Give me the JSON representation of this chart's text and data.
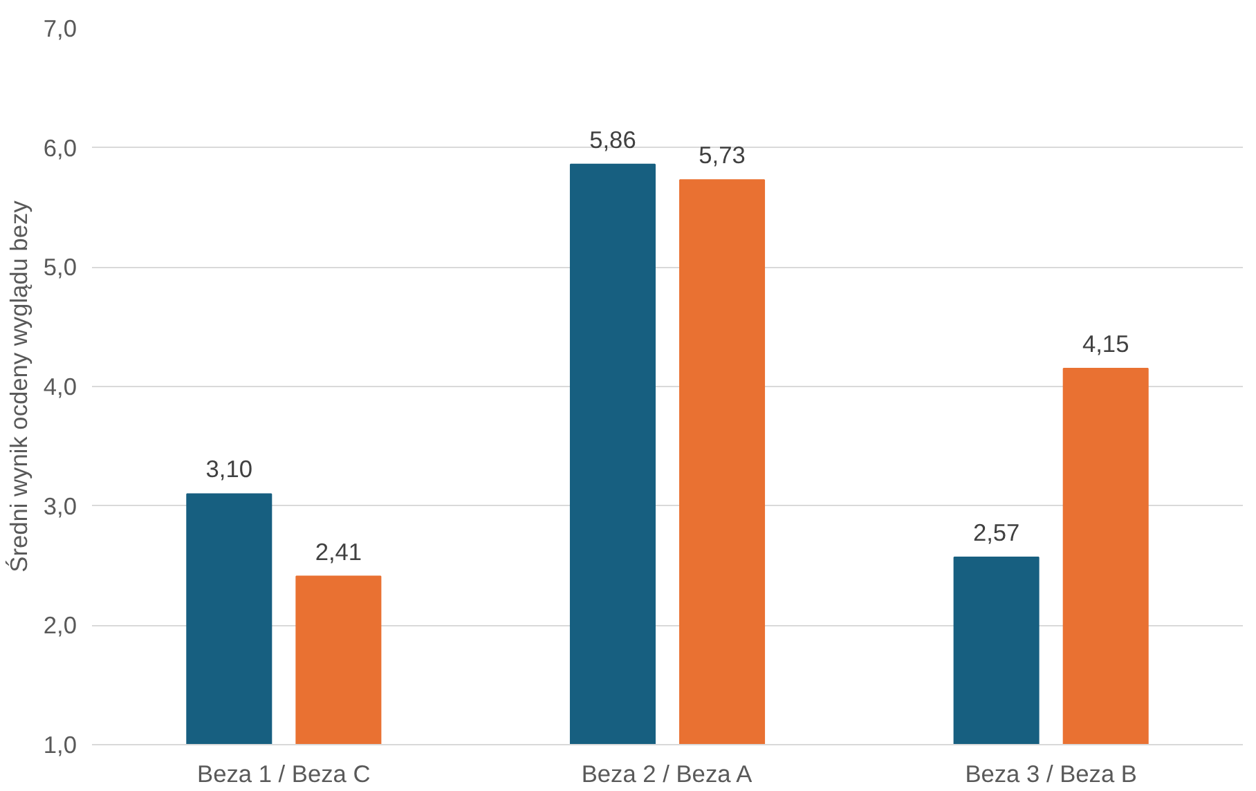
{
  "chart_data": {
    "type": "bar",
    "ylabel": "Średni wynik ocdeny wyglądu bezy",
    "categories": [
      "Beza 1 / Beza C",
      "Beza 2 / Beza A",
      "Beza 3 / Beza B"
    ],
    "series": [
      {
        "color": "#175f80",
        "values": [
          3.1,
          5.86,
          2.57
        ],
        "value_labels": [
          "3,10",
          "5,86",
          "2,57"
        ]
      },
      {
        "color": "#e97132",
        "values": [
          2.41,
          5.73,
          4.15
        ],
        "value_labels": [
          "2,41",
          "5,73",
          "4,15"
        ]
      }
    ],
    "ylim": [
      1,
      7
    ],
    "yticks": [
      {
        "value": 1,
        "label": "1,0"
      },
      {
        "value": 2,
        "label": "2,0"
      },
      {
        "value": 3,
        "label": "3,0"
      },
      {
        "value": 4,
        "label": "4,0"
      },
      {
        "value": 5,
        "label": "5,0"
      },
      {
        "value": 6,
        "label": "6,0"
      },
      {
        "value": 7,
        "label": "7,0"
      }
    ],
    "grid": "y"
  }
}
